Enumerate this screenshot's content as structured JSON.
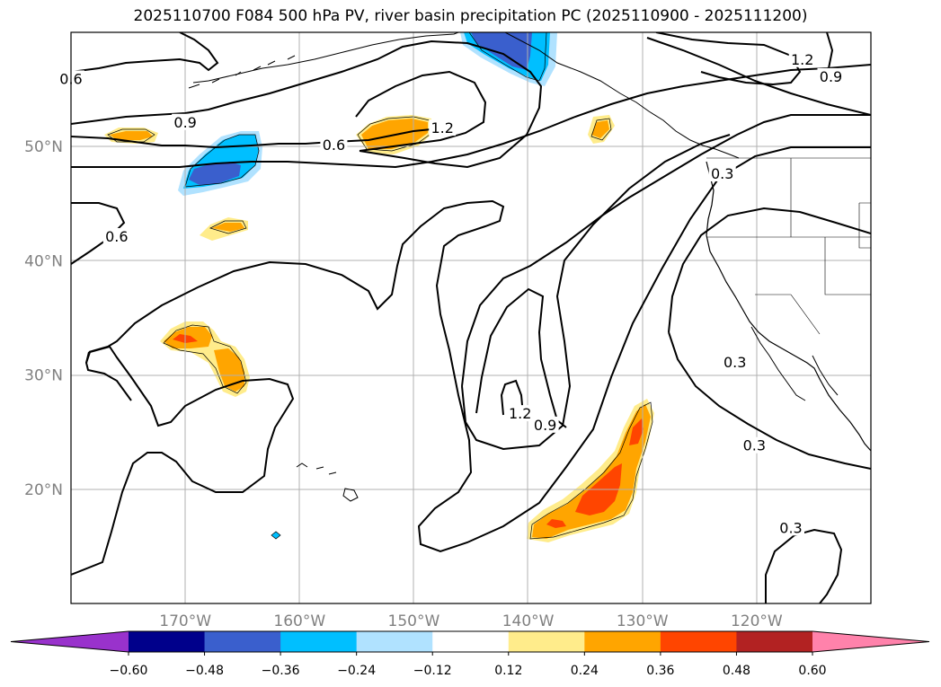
{
  "chart_data": {
    "type": "map-contour",
    "title": "2025110700 F084 500 hPa PV, river basin precipitation PC (2025110900 - 2025111200)",
    "projection": "PlateCarree",
    "lon_range": [
      -180,
      -110
    ],
    "lat_range": [
      10,
      60
    ],
    "lon_ticks": [
      {
        "value": -170,
        "label": "170°W"
      },
      {
        "value": -160,
        "label": "160°W"
      },
      {
        "value": -150,
        "label": "150°W"
      },
      {
        "value": -140,
        "label": "140°W"
      },
      {
        "value": -130,
        "label": "130°W"
      },
      {
        "value": -120,
        "label": "120°W"
      }
    ],
    "lat_ticks": [
      {
        "value": 20,
        "label": "20°N"
      },
      {
        "value": 30,
        "label": "30°N"
      },
      {
        "value": 40,
        "label": "40°N"
      },
      {
        "value": 50,
        "label": "50°N"
      }
    ],
    "grid": true,
    "colorbar": {
      "orientation": "horizontal",
      "extend": "both",
      "levels": [
        -0.6,
        -0.48,
        -0.36,
        -0.24,
        -0.12,
        0.12,
        0.24,
        0.36,
        0.48,
        0.6
      ],
      "tick_labels": [
        "−0.60",
        "−0.48",
        "−0.36",
        "−0.24",
        "−0.12",
        "0.12",
        "0.24",
        "0.36",
        "0.48",
        "0.60"
      ],
      "colors": [
        "#9932cc",
        "#00008b",
        "#3a5fcd",
        "#00bfff",
        "#b0e2ff",
        "#ffffff",
        "#ffec8b",
        "#ffa500",
        "#ff4500",
        "#b22222",
        "#ff82ab"
      ]
    },
    "pv_contour_levels": [
      0.3,
      0.6,
      0.9,
      1.2
    ],
    "pv_contour_labels": [
      {
        "text": "0.6",
        "lon": -180.0,
        "lat": 55.8
      },
      {
        "text": "0.9",
        "lon": -170.0,
        "lat": 52.0
      },
      {
        "text": "0.6",
        "lon": -157.0,
        "lat": 50.0
      },
      {
        "text": "0.6",
        "lon": -176.0,
        "lat": 42.0
      },
      {
        "text": "1.2",
        "lon": -147.5,
        "lat": 51.5
      },
      {
        "text": "1.2",
        "lon": -116.0,
        "lat": 57.5
      },
      {
        "text": "0.9",
        "lon": -113.5,
        "lat": 56.0
      },
      {
        "text": "0.3",
        "lon": -123.0,
        "lat": 47.5
      },
      {
        "text": "1.2",
        "lon": -140.7,
        "lat": 26.5
      },
      {
        "text": "0.9",
        "lon": -138.5,
        "lat": 25.5
      },
      {
        "text": "0.3",
        "lon": -121.9,
        "lat": 31.0
      },
      {
        "text": "0.3",
        "lon": -120.2,
        "lat": 23.7
      },
      {
        "text": "0.3",
        "lon": -117.0,
        "lat": 16.5
      }
    ],
    "precip_pc_anomalies": [
      {
        "sign": "negative",
        "peak": -0.48,
        "lon": -142,
        "lat": 59
      },
      {
        "sign": "negative",
        "peak": -0.48,
        "lon": -167,
        "lat": 48
      },
      {
        "sign": "negative",
        "peak": -0.24,
        "lon": -162,
        "lat": 16
      },
      {
        "sign": "positive",
        "peak": 0.36,
        "lon": -131,
        "lat": 21
      },
      {
        "sign": "positive",
        "peak": 0.36,
        "lon": -169,
        "lat": 33
      },
      {
        "sign": "positive",
        "peak": 0.24,
        "lon": -150,
        "lat": 51
      },
      {
        "sign": "positive",
        "peak": 0.24,
        "lon": -166,
        "lat": 30
      },
      {
        "sign": "positive",
        "peak": 0.24,
        "lon": -176,
        "lat": 51
      },
      {
        "sign": "positive",
        "peak": 0.24,
        "lon": -166,
        "lat": 43
      },
      {
        "sign": "positive",
        "peak": 0.24,
        "lon": -136,
        "lat": 51
      }
    ]
  }
}
